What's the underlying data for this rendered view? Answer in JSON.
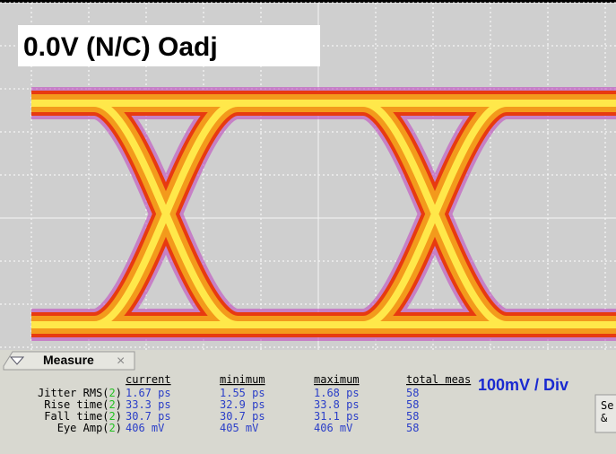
{
  "overlay": {
    "title": "0.0V (N/C) Oadj",
    "scale": "100mV / Div"
  },
  "panel": {
    "tab": "Measure",
    "close": "×",
    "headers": [
      "current",
      "minimum",
      "maximum",
      "total meas"
    ],
    "rows": [
      {
        "label": "Jitter RMS(",
        "channel": "2",
        "end": ")",
        "values": [
          "1.67 ps",
          "1.55 ps",
          "1.68 ps",
          "58"
        ]
      },
      {
        "label": "Rise time(",
        "channel": "2",
        "end": ")",
        "values": [
          "33.3 ps",
          "32.9 ps",
          "33.8 ps",
          "58"
        ]
      },
      {
        "label": "Fall time(",
        "channel": "2",
        "end": ")",
        "values": [
          "30.7 ps",
          "30.7 ps",
          "31.1 ps",
          "58"
        ]
      },
      {
        "label": "Eye Amp(",
        "channel": "2",
        "end": ")",
        "values": [
          "406 mV",
          "405 mV",
          "406 mV",
          "58"
        ]
      }
    ],
    "button": [
      "Se",
      "&"
    ]
  }
}
